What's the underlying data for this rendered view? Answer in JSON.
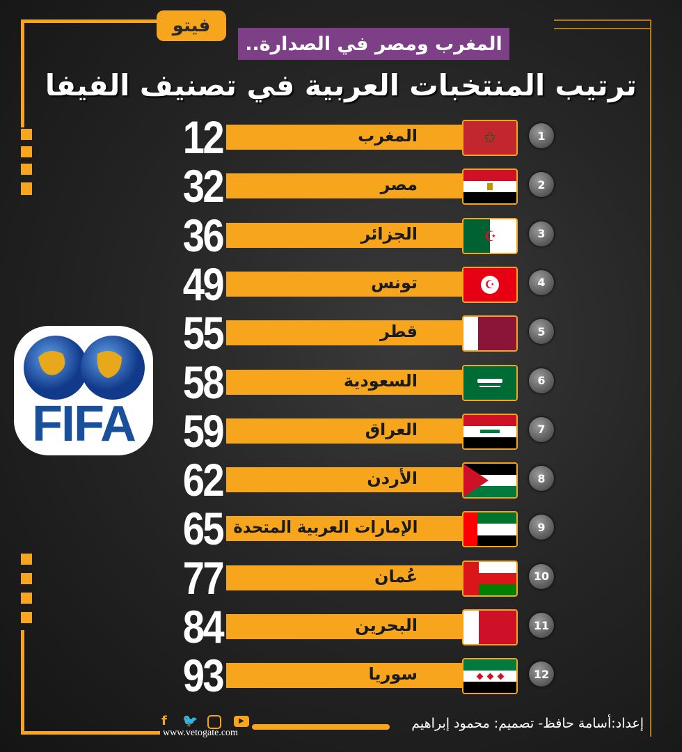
{
  "header": {
    "logo": "فيتو",
    "subtitle": "المغرب ومصر في الصدارة..",
    "title": "ترتيب المنتخبات العربية في تصنيف الفيفا"
  },
  "rows": [
    {
      "position": "1",
      "country": "المغرب",
      "rank": "12",
      "flag": "morocco"
    },
    {
      "position": "2",
      "country": "مصر",
      "rank": "32",
      "flag": "egypt"
    },
    {
      "position": "3",
      "country": "الجزائر",
      "rank": "36",
      "flag": "algeria"
    },
    {
      "position": "4",
      "country": "تونس",
      "rank": "49",
      "flag": "tunisia"
    },
    {
      "position": "5",
      "country": "قطر",
      "rank": "55",
      "flag": "qatar"
    },
    {
      "position": "6",
      "country": "السعودية",
      "rank": "58",
      "flag": "saudi-arabia"
    },
    {
      "position": "7",
      "country": "العراق",
      "rank": "59",
      "flag": "iraq"
    },
    {
      "position": "8",
      "country": "الأردن",
      "rank": "62",
      "flag": "jordan"
    },
    {
      "position": "9",
      "country": "الإمارات العربية المتحدة",
      "rank": "65",
      "flag": "uae"
    },
    {
      "position": "10",
      "country": "عُمان",
      "rank": "77",
      "flag": "oman"
    },
    {
      "position": "11",
      "country": "البحرين",
      "rank": "84",
      "flag": "bahrain"
    },
    {
      "position": "12",
      "country": "سوريا",
      "rank": "93",
      "flag": "syria"
    }
  ],
  "fifa_logo": {
    "text": "FIFA"
  },
  "footer": {
    "credit": "إعداد:أسامة حافظ- تصميم: محمود إبراهيم",
    "website": "www.vetogate.com",
    "social_icons": [
      "facebook-icon",
      "twitter-icon",
      "instagram-icon",
      "youtube-icon"
    ]
  },
  "colors": {
    "accent": "#f7a51c",
    "subtitle_bg": "#7d3f86",
    "fifa_blue": "#1a4f9c"
  }
}
